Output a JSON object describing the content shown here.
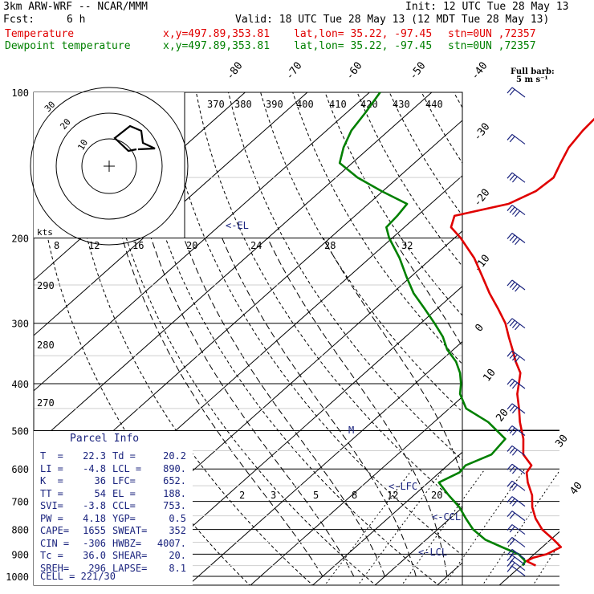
{
  "header": {
    "model": "3km ARW-WRF -- NCAR/MMM",
    "init": "Init: 12 UTC Tue 28 May 13",
    "fcst_label": "Fcst:",
    "fcst_value": "6 h",
    "valid": "Valid: 18 UTC Tue 28 May 13 (12 MDT Tue 28 May 13)",
    "lines": [
      {
        "label": "Temperature",
        "xy": "x,y=497.89,353.81",
        "latlon": "lat,lon= 35.22, -97.45",
        "stn": "stn=0UN ,72357",
        "color": "#e00000"
      },
      {
        "label": "Dewpoint temperature",
        "xy": "x,y=497.89,353.81",
        "latlon": "lat,lon= 35.22, -97.45",
        "stn": "stn=0UN ,72357",
        "color": "#008000"
      }
    ]
  },
  "barb_legend": {
    "title": "Full barb:",
    "value": "5 m s⁻¹"
  },
  "hodograph": {
    "units": "kts",
    "ring_labels": [
      "10",
      "20",
      "30"
    ],
    "axis_labels": [
      "8",
      "12",
      "16",
      "20",
      "24",
      "28",
      "32"
    ]
  },
  "mixing_ratio_labels": [
    "2",
    "3",
    "5",
    "8",
    "12",
    "20"
  ],
  "theta_labels": [
    "370",
    "380",
    "390",
    "400",
    "410",
    "420",
    "430",
    "440",
    "290",
    "280",
    "270"
  ],
  "skew_temp_labels": [
    "-80",
    "-70",
    "-60",
    "-50",
    "-40",
    "-30",
    "-20",
    "-10",
    "0",
    "10",
    "20",
    "30",
    "40"
  ],
  "level_labels": {
    "el": "<-EL",
    "lfc": "<-LFC",
    "ccl": "<-CCL",
    "lcl": "<-LCL",
    "m": "M"
  },
  "parcel_info": {
    "title": "Parcel Info",
    "rows": [
      [
        "T  =",
        "22.3",
        "Td =",
        "20.2"
      ],
      [
        "LI =",
        "-4.8",
        "LCL =",
        "890."
      ],
      [
        "K  =",
        "36",
        "LFC=",
        "652."
      ],
      [
        "TT =",
        "54",
        "EL =",
        "188."
      ],
      [
        "SVI=",
        "-3.8",
        "CCL=",
        "753."
      ],
      [
        "PW =",
        "4.18",
        "YGP=",
        "0.5"
      ],
      [
        "CAPE=",
        "1655",
        "SWEAT=",
        "352"
      ],
      [
        "CIN =",
        "-306",
        "HWBZ=",
        "4007."
      ],
      [
        "Tc =",
        "36.0",
        "SHEAR=",
        "20."
      ],
      [
        "SREH=",
        "296",
        "LAPSE=",
        "8.1"
      ]
    ],
    "cell": "CELL = 221/30"
  },
  "chart_data": {
    "type": "line",
    "title": "",
    "xlabel": "",
    "ylabel": "",
    "y_axis": {
      "scale": "log",
      "ticks": [
        100,
        200,
        300,
        400,
        500,
        600,
        700,
        800,
        900,
        1000
      ],
      "ylim": [
        1000,
        100
      ],
      "units": "hPa"
    },
    "x_axis": {
      "skewed": true,
      "units": "°C",
      "ticks": [
        -80,
        -70,
        -60,
        -50,
        -40,
        -30,
        -20,
        -10,
        0,
        10,
        20,
        30,
        40
      ]
    },
    "series": [
      {
        "name": "Temperature",
        "color": "#e00000",
        "pressure": [
          950,
          930,
          915,
          900,
          870,
          840,
          800,
          760,
          720,
          680,
          640,
          610,
          590,
          560,
          520,
          480,
          450,
          420,
          400,
          380,
          360,
          340,
          320,
          300,
          280,
          260,
          240,
          220,
          200,
          190,
          180,
          170,
          160,
          150,
          140,
          130,
          120,
          110,
          100
        ],
        "temp": [
          22.3,
          20.0,
          20.5,
          22.0,
          23.0,
          20.5,
          16.8,
          13.8,
          11.2,
          9.0,
          6.0,
          4.0,
          3.5,
          0.2,
          -2.6,
          -6.2,
          -8.8,
          -11.7,
          -13.3,
          -15.0,
          -17.8,
          -20.5,
          -23.4,
          -26.4,
          -30.2,
          -34.4,
          -38.6,
          -43.2,
          -49.0,
          -52.5,
          -54.0,
          -47.5,
          -45.4,
          -45.0,
          -46.5,
          -48.0,
          -48.8,
          -49.2,
          -49.9
        ]
      },
      {
        "name": "Dewpoint temperature",
        "color": "#008000",
        "pressure": [
          950,
          930,
          900,
          870,
          840,
          800,
          760,
          720,
          680,
          640,
          610,
          590,
          560,
          520,
          480,
          450,
          420,
          400,
          380,
          360,
          340,
          320,
          300,
          280,
          260,
          240,
          220,
          200,
          190,
          180,
          170,
          160,
          150,
          140,
          130,
          120,
          110,
          100
        ],
        "temp": [
          20.2,
          19.8,
          17.5,
          13.5,
          9.5,
          5.7,
          2.6,
          -0.5,
          -4.4,
          -8.3,
          -6.8,
          -7.1,
          -4.9,
          -5.5,
          -11.3,
          -17.3,
          -20.9,
          -22.6,
          -24.7,
          -27.4,
          -31.0,
          -34.0,
          -37.8,
          -42.0,
          -46.6,
          -50.8,
          -55.2,
          -60.5,
          -62.9,
          -63.2,
          -63.8,
          -70.2,
          -76.5,
          -82.0,
          -84.2,
          -86.0,
          -87.0,
          -88.3
        ]
      }
    ],
    "wind_barbs": {
      "units": "m s⁻¹",
      "pressure": [
        975,
        950,
        925,
        900,
        850,
        800,
        750,
        700,
        650,
        600,
        550,
        500,
        450,
        400,
        350,
        300,
        250,
        200,
        175,
        150,
        125,
        100
      ],
      "speed": [
        7,
        9,
        11,
        9,
        12,
        12,
        12,
        13,
        14,
        14,
        14,
        15,
        15,
        16,
        18,
        19,
        22,
        21,
        20,
        14,
        10,
        9
      ]
    }
  }
}
